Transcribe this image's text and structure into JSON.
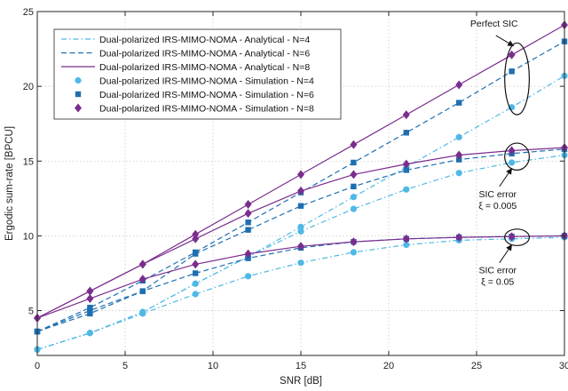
{
  "chart_data": {
    "type": "line",
    "xlabel": "SNR [dB]",
    "ylabel": "Ergodic sum-rate [BPCU]",
    "xlim": [
      0,
      30
    ],
    "ylim": [
      2,
      25
    ],
    "xticks": [
      0,
      5,
      10,
      15,
      20,
      25,
      30
    ],
    "yticks": [
      5,
      10,
      15,
      20,
      25
    ],
    "xtick_labels": [
      "0",
      "5",
      "10",
      "15",
      "20",
      "25",
      "30"
    ],
    "ytick_labels": [
      "5",
      "10",
      "15",
      "20",
      "25"
    ],
    "grid": true,
    "legend_position": "top-left",
    "x": [
      0,
      3,
      6,
      9,
      12,
      15,
      18,
      21,
      24,
      27,
      30
    ],
    "colors": {
      "N4": "#4fb8e6",
      "N6": "#1f6fb0",
      "N8": "#7b2d8e"
    },
    "legend": [
      {
        "label": "Dual-polarized IRS-MIMO-NOMA - Analytical -  N=4",
        "style": "dashdot",
        "color": "#4fb8e6"
      },
      {
        "label": "Dual-polarized IRS-MIMO-NOMA - Analytical -  N=6",
        "style": "dashed",
        "color": "#1f6fb0"
      },
      {
        "label": "Dual-polarized IRS-MIMO-NOMA - Analytical -  N=8",
        "style": "solid",
        "color": "#7b2d8e"
      },
      {
        "label": "Dual-polarized IRS-MIMO-NOMA - Simulation -  N=4",
        "marker": "circle",
        "color": "#4fb8e6"
      },
      {
        "label": "Dual-polarized IRS-MIMO-NOMA - Simulation -  N=6",
        "marker": "square",
        "color": "#1f6fb0"
      },
      {
        "label": "Dual-polarized IRS-MIMO-NOMA - Simulation -  N=8",
        "marker": "diamond",
        "color": "#7b2d8e"
      }
    ],
    "series": [
      {
        "group": "Perfect SIC",
        "N": 4,
        "style": "dashdot",
        "marker": "circle",
        "color": "#4fb8e6",
        "values": [
          2.4,
          3.5,
          4.9,
          6.8,
          8.6,
          10.6,
          12.6,
          14.6,
          16.6,
          18.6,
          20.7
        ]
      },
      {
        "group": "Perfect SIC",
        "N": 6,
        "style": "dashed",
        "marker": "square",
        "color": "#1f6fb0",
        "values": [
          3.6,
          5.2,
          7.0,
          8.9,
          10.9,
          12.9,
          14.9,
          16.9,
          18.9,
          21.0,
          23.0
        ]
      },
      {
        "group": "Perfect SIC",
        "N": 8,
        "style": "solid",
        "marker": "diamond",
        "color": "#7b2d8e",
        "values": [
          4.5,
          6.3,
          8.1,
          10.1,
          12.1,
          14.1,
          16.1,
          18.1,
          20.1,
          22.1,
          24.1
        ]
      },
      {
        "group": "SIC error 0.005",
        "N": 4,
        "style": "dashdot",
        "marker": "circle",
        "color": "#4fb8e6",
        "values": [
          2.4,
          3.5,
          4.9,
          6.8,
          8.6,
          10.3,
          11.8,
          13.1,
          14.2,
          14.9,
          15.4
        ]
      },
      {
        "group": "SIC error 0.005",
        "N": 6,
        "style": "dashed",
        "marker": "square",
        "color": "#1f6fb0",
        "values": [
          3.6,
          5.0,
          6.3,
          8.8,
          10.4,
          12.0,
          13.3,
          14.4,
          15.1,
          15.5,
          15.8
        ]
      },
      {
        "group": "SIC error 0.005",
        "N": 8,
        "style": "solid",
        "marker": "diamond",
        "color": "#7b2d8e",
        "values": [
          4.5,
          6.3,
          8.1,
          9.8,
          11.5,
          13.0,
          14.1,
          14.8,
          15.4,
          15.7,
          15.9
        ]
      },
      {
        "group": "SIC error 0.05",
        "N": 4,
        "style": "dashdot",
        "marker": "circle",
        "color": "#4fb8e6",
        "values": [
          2.4,
          3.5,
          4.8,
          6.1,
          7.3,
          8.2,
          8.9,
          9.4,
          9.7,
          9.8,
          9.9
        ]
      },
      {
        "group": "SIC error 0.05",
        "N": 6,
        "style": "dashed",
        "marker": "square",
        "color": "#1f6fb0",
        "values": [
          3.6,
          4.8,
          6.3,
          7.5,
          8.5,
          9.2,
          9.6,
          9.8,
          9.9,
          9.95,
          10.0
        ]
      },
      {
        "group": "SIC error 0.05",
        "N": 8,
        "style": "solid",
        "marker": "diamond",
        "color": "#7b2d8e",
        "values": [
          4.5,
          5.8,
          7.1,
          8.1,
          8.8,
          9.3,
          9.6,
          9.8,
          9.9,
          9.95,
          10.0
        ]
      }
    ],
    "annotations": [
      {
        "text_lines": [
          "Perfect SIC"
        ],
        "ellipse_center": [
          27.3,
          20.5
        ],
        "ellipse_radii": [
          0.7,
          2.4
        ],
        "arrow_tail": [
          26.1,
          23.4
        ],
        "arrow_head": [
          27.1,
          22.7
        ]
      },
      {
        "text_lines": [
          "SIC error",
          "ξ = 0.005"
        ],
        "ellipse_center": [
          27.3,
          15.3
        ],
        "ellipse_radii": [
          0.7,
          0.9
        ],
        "arrow_tail": [
          26.3,
          13.3
        ],
        "arrow_head": [
          27.0,
          14.5
        ]
      },
      {
        "text_lines": [
          "SIC error",
          "ξ = 0.05"
        ],
        "ellipse_center": [
          27.3,
          9.9
        ],
        "ellipse_radii": [
          0.7,
          0.55
        ],
        "arrow_tail": [
          26.3,
          8.2
        ],
        "arrow_head": [
          27.0,
          9.4
        ]
      }
    ]
  }
}
